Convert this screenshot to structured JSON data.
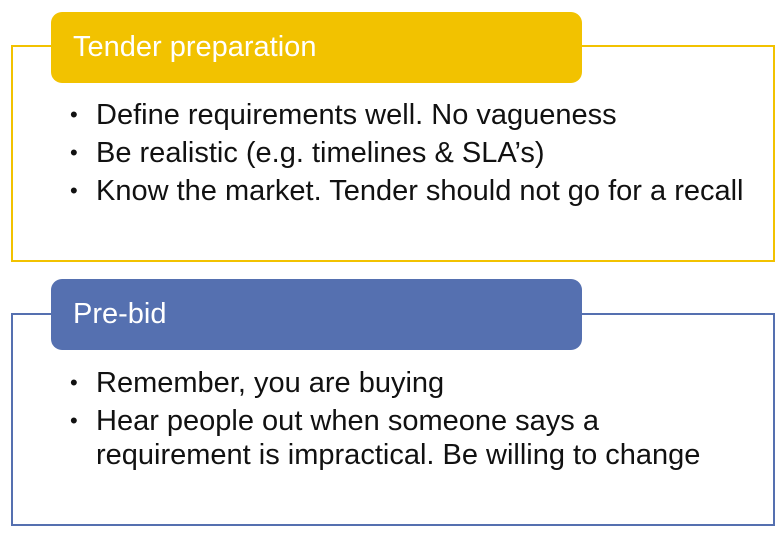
{
  "sections": [
    {
      "title": "Tender preparation",
      "color": "#F2C200",
      "bullets": [
        "Define requirements well. No vagueness",
        "Be realistic (e.g. timelines & SLA’s)",
        "Know the market. Tender should not go for a recall"
      ]
    },
    {
      "title": "Pre-bid",
      "color": "#5570B0",
      "bullets": [
        "Remember, you are buying",
        "Hear people out when someone says a requirement is impractical. Be willing to change"
      ]
    }
  ]
}
